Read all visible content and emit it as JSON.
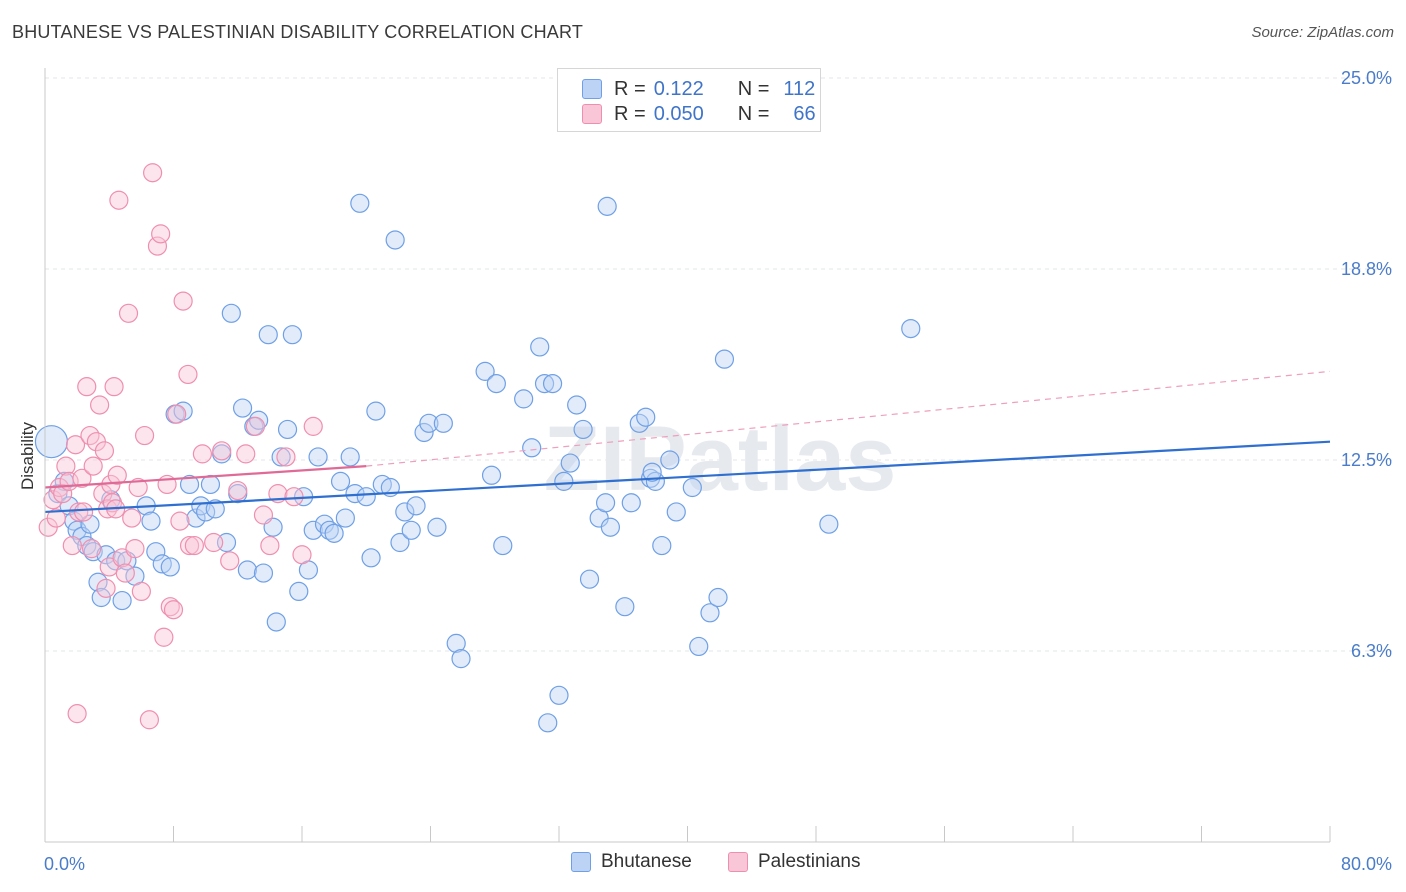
{
  "title": "BHUTANESE VS PALESTINIAN DISABILITY CORRELATION CHART",
  "source": "Source: ZipAtlas.com",
  "watermark": "ZIPatlas",
  "legend": {
    "rows": [
      {
        "r_label": "R =",
        "r_value": "0.122",
        "n_label": "N =",
        "n_value": "112",
        "color": "#6fa0e6",
        "fill": "#bcd3f5"
      },
      {
        "r_label": "R =",
        "r_value": "0.050",
        "n_label": "N =",
        "n_value": "66",
        "color": "#ef8fb0",
        "fill": "#f8c6d6"
      }
    ]
  },
  "bottom_legend": [
    "Bhutanese",
    "Palestinians"
  ],
  "chart_data": {
    "type": "scatter",
    "title": "BHUTANESE VS PALESTINIAN DISABILITY CORRELATION CHART",
    "xlabel": "",
    "ylabel": "Disability",
    "xlim": [
      0,
      80
    ],
    "ylim": [
      0,
      25
    ],
    "x_tick_labels": [
      "0.0%",
      "80.0%"
    ],
    "y_ticks": [
      6.25,
      12.5,
      18.75,
      25.0
    ],
    "y_tick_labels": [
      "6.3%",
      "12.5%",
      "18.8%",
      "25.0%"
    ],
    "grid": "horizontal-dashed",
    "legend_position": "top-center",
    "series": [
      {
        "name": "Bhutanese",
        "color": "#6fa0e6",
        "fill": "#bcd3f5",
        "trend": {
          "x": [
            0,
            80
          ],
          "y": [
            10.8,
            13.1
          ],
          "style": "solid",
          "color": "#2f6fcf"
        },
        "points": [
          [
            0.4,
            13.1
          ],
          [
            0.8,
            11.4
          ],
          [
            1.2,
            11.8
          ],
          [
            1.5,
            11.0
          ],
          [
            1.8,
            10.5
          ],
          [
            2.0,
            10.2
          ],
          [
            2.3,
            10.0
          ],
          [
            2.6,
            9.7
          ],
          [
            2.8,
            10.4
          ],
          [
            3.0,
            9.5
          ],
          [
            3.3,
            8.5
          ],
          [
            3.5,
            8.0
          ],
          [
            3.8,
            9.4
          ],
          [
            4.1,
            11.2
          ],
          [
            4.4,
            9.2
          ],
          [
            4.8,
            7.9
          ],
          [
            5.1,
            9.2
          ],
          [
            5.6,
            8.7
          ],
          [
            6.3,
            11.0
          ],
          [
            6.6,
            10.5
          ],
          [
            6.9,
            9.5
          ],
          [
            7.3,
            9.1
          ],
          [
            7.8,
            9.0
          ],
          [
            8.1,
            14.0
          ],
          [
            8.6,
            14.1
          ],
          [
            9.0,
            11.7
          ],
          [
            9.4,
            10.6
          ],
          [
            9.7,
            11.0
          ],
          [
            10.0,
            10.8
          ],
          [
            10.3,
            11.7
          ],
          [
            10.6,
            10.9
          ],
          [
            11.0,
            12.7
          ],
          [
            11.3,
            9.8
          ],
          [
            11.6,
            17.3
          ],
          [
            12.0,
            11.4
          ],
          [
            12.3,
            14.2
          ],
          [
            12.6,
            8.9
          ],
          [
            13.0,
            13.6
          ],
          [
            13.3,
            13.8
          ],
          [
            13.6,
            8.8
          ],
          [
            13.9,
            16.6
          ],
          [
            14.2,
            10.3
          ],
          [
            14.4,
            7.2
          ],
          [
            14.7,
            12.6
          ],
          [
            15.1,
            13.5
          ],
          [
            15.4,
            16.6
          ],
          [
            15.8,
            8.2
          ],
          [
            16.1,
            11.3
          ],
          [
            16.4,
            8.9
          ],
          [
            16.7,
            10.2
          ],
          [
            17.0,
            12.6
          ],
          [
            17.4,
            10.4
          ],
          [
            17.7,
            10.2
          ],
          [
            18.0,
            10.1
          ],
          [
            18.4,
            11.8
          ],
          [
            18.7,
            10.6
          ],
          [
            19.0,
            12.6
          ],
          [
            19.3,
            11.4
          ],
          [
            19.6,
            20.9
          ],
          [
            20.0,
            11.3
          ],
          [
            20.3,
            9.3
          ],
          [
            20.6,
            14.1
          ],
          [
            21.0,
            11.7
          ],
          [
            21.5,
            11.6
          ],
          [
            21.8,
            19.7
          ],
          [
            22.1,
            9.8
          ],
          [
            22.4,
            10.8
          ],
          [
            22.8,
            10.2
          ],
          [
            23.1,
            11.0
          ],
          [
            23.6,
            13.4
          ],
          [
            23.9,
            13.7
          ],
          [
            24.4,
            10.3
          ],
          [
            24.8,
            13.7
          ],
          [
            25.6,
            6.5
          ],
          [
            25.9,
            6.0
          ],
          [
            27.4,
            15.4
          ],
          [
            27.8,
            12.0
          ],
          [
            28.1,
            15.0
          ],
          [
            28.5,
            9.7
          ],
          [
            29.8,
            14.5
          ],
          [
            30.3,
            12.9
          ],
          [
            30.8,
            16.2
          ],
          [
            31.1,
            15.0
          ],
          [
            31.3,
            3.9
          ],
          [
            31.6,
            15.0
          ],
          [
            32.0,
            4.8
          ],
          [
            32.3,
            11.8
          ],
          [
            32.7,
            12.4
          ],
          [
            33.1,
            14.3
          ],
          [
            33.5,
            13.5
          ],
          [
            33.9,
            8.6
          ],
          [
            34.5,
            10.6
          ],
          [
            34.9,
            11.1
          ],
          [
            35.2,
            10.3
          ],
          [
            36.1,
            7.7
          ],
          [
            36.5,
            11.1
          ],
          [
            37.0,
            13.7
          ],
          [
            37.4,
            13.9
          ],
          [
            37.7,
            11.9
          ],
          [
            38.0,
            11.8
          ],
          [
            38.4,
            9.7
          ],
          [
            38.9,
            12.5
          ],
          [
            39.3,
            10.8
          ],
          [
            40.3,
            11.6
          ],
          [
            40.7,
            6.4
          ],
          [
            41.4,
            7.5
          ],
          [
            41.9,
            8.0
          ],
          [
            42.3,
            15.8
          ],
          [
            35.0,
            20.8
          ],
          [
            37.8,
            12.1
          ],
          [
            53.9,
            16.8
          ],
          [
            48.8,
            10.4
          ]
        ]
      },
      {
        "name": "Palestinians",
        "color": "#ef8fb0",
        "fill": "#f8c6d6",
        "trend": {
          "x": [
            0,
            20
          ],
          "y": [
            11.6,
            12.3
          ],
          "style": "solid",
          "color": "#e06a96",
          "extension": {
            "x": [
              20,
              80
            ],
            "y": [
              12.3,
              15.4
            ],
            "style": "dashed"
          }
        },
        "points": [
          [
            0.2,
            10.3
          ],
          [
            0.5,
            11.2
          ],
          [
            0.7,
            10.6
          ],
          [
            0.9,
            11.6
          ],
          [
            1.1,
            11.4
          ],
          [
            1.3,
            12.3
          ],
          [
            1.5,
            11.8
          ],
          [
            1.7,
            9.7
          ],
          [
            1.9,
            13.0
          ],
          [
            2.1,
            10.8
          ],
          [
            2.3,
            11.9
          ],
          [
            2.4,
            10.8
          ],
          [
            2.6,
            14.9
          ],
          [
            2.8,
            13.3
          ],
          [
            2.9,
            9.6
          ],
          [
            3.0,
            12.3
          ],
          [
            3.2,
            13.1
          ],
          [
            3.4,
            14.3
          ],
          [
            3.6,
            11.4
          ],
          [
            3.7,
            12.8
          ],
          [
            3.8,
            8.3
          ],
          [
            3.9,
            10.9
          ],
          [
            4.0,
            9.0
          ],
          [
            4.1,
            11.7
          ],
          [
            4.2,
            11.1
          ],
          [
            4.3,
            14.9
          ],
          [
            4.4,
            10.9
          ],
          [
            4.5,
            12.0
          ],
          [
            4.6,
            21.0
          ],
          [
            4.8,
            9.3
          ],
          [
            5.0,
            8.8
          ],
          [
            5.2,
            17.3
          ],
          [
            5.4,
            10.6
          ],
          [
            5.6,
            9.6
          ],
          [
            5.8,
            11.6
          ],
          [
            6.0,
            8.2
          ],
          [
            6.2,
            13.3
          ],
          [
            6.5,
            4.0
          ],
          [
            6.7,
            21.9
          ],
          [
            7.0,
            19.5
          ],
          [
            7.2,
            19.9
          ],
          [
            7.4,
            6.7
          ],
          [
            7.6,
            11.7
          ],
          [
            7.8,
            7.7
          ],
          [
            8.0,
            7.6
          ],
          [
            8.2,
            14.0
          ],
          [
            8.4,
            10.5
          ],
          [
            8.6,
            17.7
          ],
          [
            8.9,
            15.3
          ],
          [
            9.0,
            9.7
          ],
          [
            9.3,
            9.7
          ],
          [
            9.8,
            12.7
          ],
          [
            10.5,
            9.8
          ],
          [
            11.0,
            12.8
          ],
          [
            11.5,
            9.2
          ],
          [
            12.0,
            11.5
          ],
          [
            12.5,
            12.7
          ],
          [
            13.1,
            13.6
          ],
          [
            13.6,
            10.7
          ],
          [
            14.0,
            9.7
          ],
          [
            14.5,
            11.4
          ],
          [
            15.0,
            12.6
          ],
          [
            15.5,
            11.3
          ],
          [
            16.0,
            9.4
          ],
          [
            16.7,
            13.6
          ],
          [
            2.0,
            4.2
          ]
        ]
      }
    ]
  }
}
